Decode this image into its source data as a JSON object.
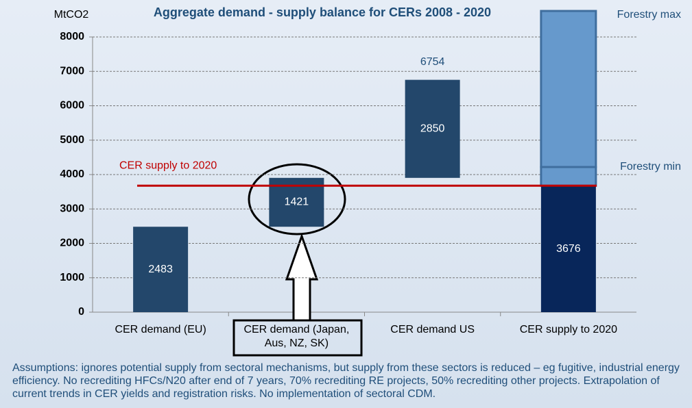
{
  "chart_data": {
    "type": "waterfall",
    "title": "Aggregate demand  - supply balance  for CERs 2008 - 2020",
    "y_label": "MtCO2",
    "categories": [
      "CER demand (EU)",
      "CER demand (Japan, Aus, NZ, SK)",
      "CER demand US",
      "CER supply to 2020"
    ],
    "values": [
      2483,
      1421,
      2850,
      3676
    ],
    "colors": [
      "#23476b",
      "#23476b",
      "#23476b",
      "#08265a"
    ],
    "running_total_label": 6754,
    "supply_line": {
      "label": "CER supply to 2020",
      "value": 3676,
      "color": "#c00000"
    },
    "forestry": {
      "min_label": "Forestry min",
      "min_value": 543,
      "max_label": "Forestry max",
      "max_value": 4537,
      "color": "#6699cc",
      "border": "#3f6e9e"
    },
    "ylim": [
      0,
      8000
    ],
    "yticks": [
      0,
      1000,
      2000,
      3000,
      4000,
      5000,
      6000,
      7000,
      8000
    ],
    "grid": true,
    "footnote": "Assumptions:  ignores potential supply from sectoral mechanisms, but supply from these sectors is reduced – eg fugitive, industrial energy efficiency. No recrediting HFCs/N20 after end of 7 years, 70% recrediting RE projects, 50% recrediting other projects. Extrapolation of current trends in CER yields and registration risks. No implementation of sectoral CDM."
  }
}
